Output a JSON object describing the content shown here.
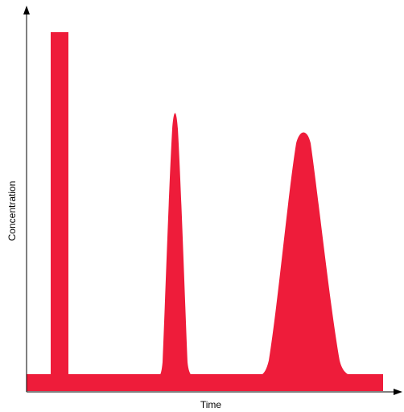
{
  "axes": {
    "x_label": "Time",
    "y_label": "Concentration"
  },
  "colors": {
    "signal": "#ee1c3a",
    "axis": "#000000",
    "background": "#ffffff"
  }
}
